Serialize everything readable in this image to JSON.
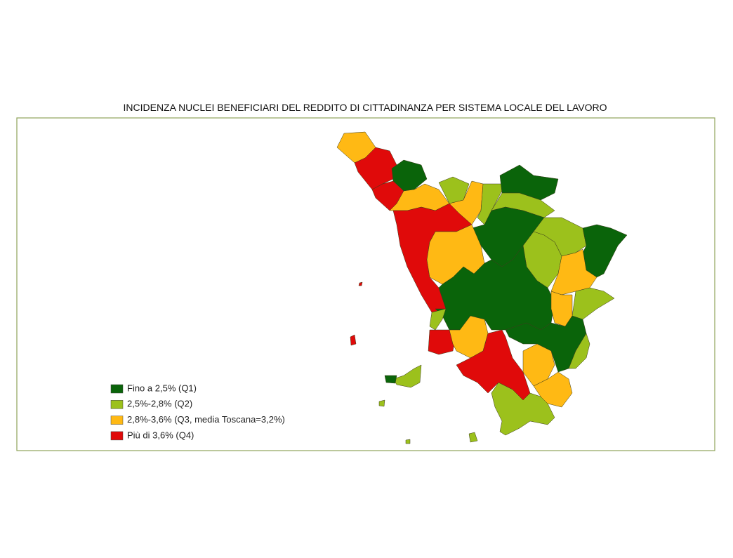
{
  "title": "INCIDENZA NUCLEI BENEFICIARI DEL REDDITO DI CITTADINANZA PER SISTEMA LOCALE DEL LAVORO",
  "legend": [
    {
      "label": "Fino a 2,5% (Q1)",
      "color": "#0a640a"
    },
    {
      "label": "2,5%-2,8% (Q2)",
      "color": "#9cc11c"
    },
    {
      "label": "2,8%-3,6% (Q3, media Toscana=3,2%)",
      "color": "#ffb914"
    },
    {
      "label": "Più di 3,6% (Q4)",
      "color": "#e00a0a"
    }
  ]
}
